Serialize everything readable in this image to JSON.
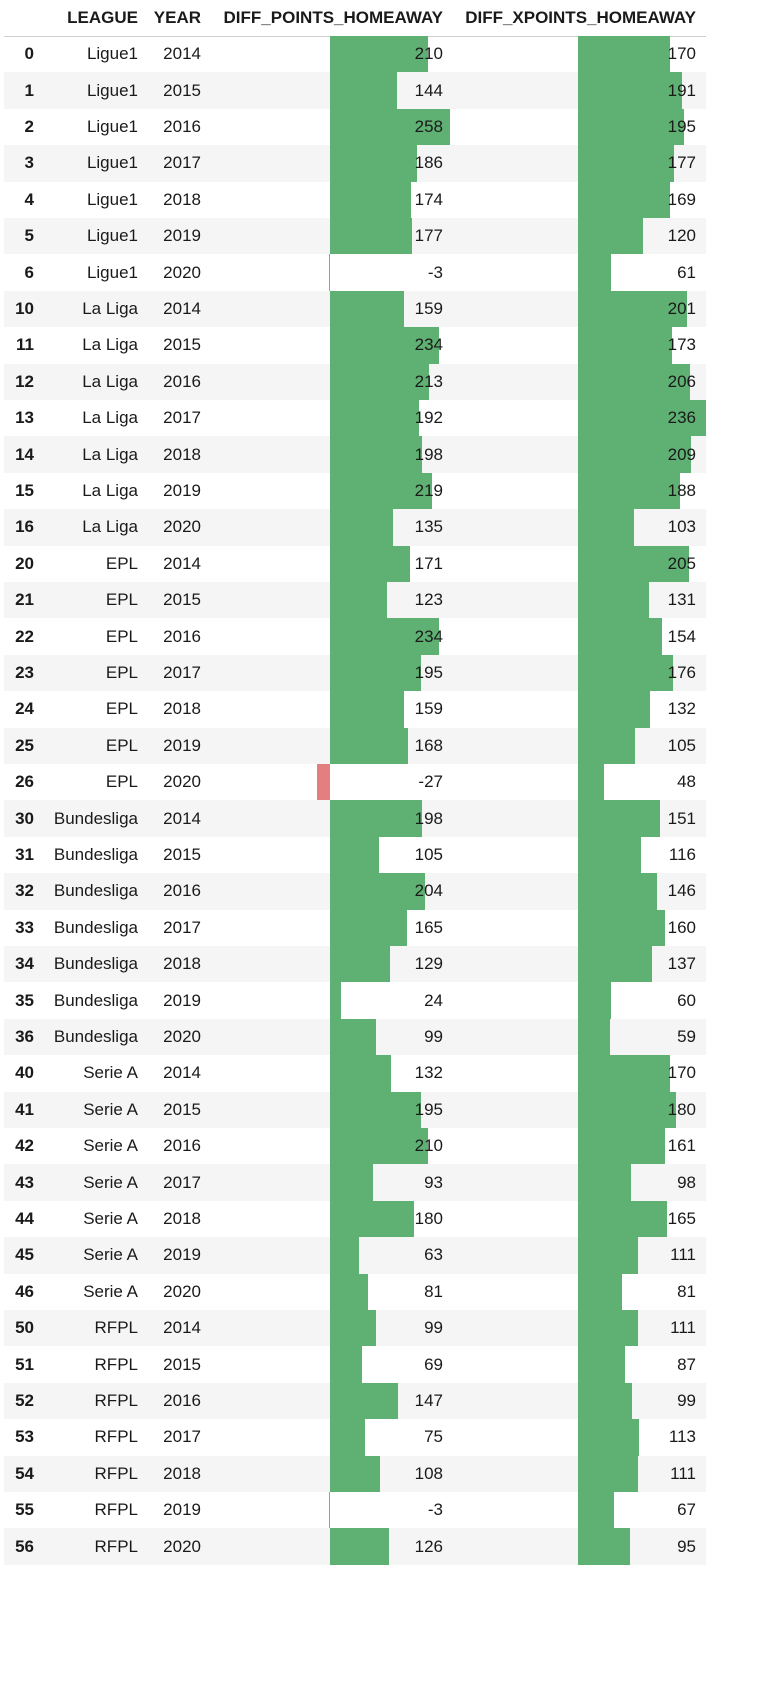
{
  "table": {
    "columns": {
      "index": "",
      "league": "LEAGUE",
      "year": "YEAR",
      "diff_points": "DIFF_POINTS_HOMEAWAY",
      "diff_xpoints": "DIFF_XPOINTS_HOMEAWAY"
    },
    "bar_colors": {
      "positive": "#5fb173",
      "negative": "#e3807f"
    },
    "diff_points_scale": {
      "min": -27,
      "max": 258
    },
    "diff_xpoints_scale": {
      "min": 0,
      "max": 236
    },
    "rows": [
      {
        "index": "0",
        "league": "Ligue1",
        "year": "2014",
        "diff_points": 210,
        "diff_xpoints": 170
      },
      {
        "index": "1",
        "league": "Ligue1",
        "year": "2015",
        "diff_points": 144,
        "diff_xpoints": 191
      },
      {
        "index": "2",
        "league": "Ligue1",
        "year": "2016",
        "diff_points": 258,
        "diff_xpoints": 195
      },
      {
        "index": "3",
        "league": "Ligue1",
        "year": "2017",
        "diff_points": 186,
        "diff_xpoints": 177
      },
      {
        "index": "4",
        "league": "Ligue1",
        "year": "2018",
        "diff_points": 174,
        "diff_xpoints": 169
      },
      {
        "index": "5",
        "league": "Ligue1",
        "year": "2019",
        "diff_points": 177,
        "diff_xpoints": 120
      },
      {
        "index": "6",
        "league": "Ligue1",
        "year": "2020",
        "diff_points": -3,
        "diff_xpoints": 61
      },
      {
        "index": "10",
        "league": "La Liga",
        "year": "2014",
        "diff_points": 159,
        "diff_xpoints": 201
      },
      {
        "index": "11",
        "league": "La Liga",
        "year": "2015",
        "diff_points": 234,
        "diff_xpoints": 173
      },
      {
        "index": "12",
        "league": "La Liga",
        "year": "2016",
        "diff_points": 213,
        "diff_xpoints": 206
      },
      {
        "index": "13",
        "league": "La Liga",
        "year": "2017",
        "diff_points": 192,
        "diff_xpoints": 236
      },
      {
        "index": "14",
        "league": "La Liga",
        "year": "2018",
        "diff_points": 198,
        "diff_xpoints": 209
      },
      {
        "index": "15",
        "league": "La Liga",
        "year": "2019",
        "diff_points": 219,
        "diff_xpoints": 188
      },
      {
        "index": "16",
        "league": "La Liga",
        "year": "2020",
        "diff_points": 135,
        "diff_xpoints": 103
      },
      {
        "index": "20",
        "league": "EPL",
        "year": "2014",
        "diff_points": 171,
        "diff_xpoints": 205
      },
      {
        "index": "21",
        "league": "EPL",
        "year": "2015",
        "diff_points": 123,
        "diff_xpoints": 131
      },
      {
        "index": "22",
        "league": "EPL",
        "year": "2016",
        "diff_points": 234,
        "diff_xpoints": 154
      },
      {
        "index": "23",
        "league": "EPL",
        "year": "2017",
        "diff_points": 195,
        "diff_xpoints": 176
      },
      {
        "index": "24",
        "league": "EPL",
        "year": "2018",
        "diff_points": 159,
        "diff_xpoints": 132
      },
      {
        "index": "25",
        "league": "EPL",
        "year": "2019",
        "diff_points": 168,
        "diff_xpoints": 105
      },
      {
        "index": "26",
        "league": "EPL",
        "year": "2020",
        "diff_points": -27,
        "diff_xpoints": 48
      },
      {
        "index": "30",
        "league": "Bundesliga",
        "year": "2014",
        "diff_points": 198,
        "diff_xpoints": 151
      },
      {
        "index": "31",
        "league": "Bundesliga",
        "year": "2015",
        "diff_points": 105,
        "diff_xpoints": 116
      },
      {
        "index": "32",
        "league": "Bundesliga",
        "year": "2016",
        "diff_points": 204,
        "diff_xpoints": 146
      },
      {
        "index": "33",
        "league": "Bundesliga",
        "year": "2017",
        "diff_points": 165,
        "diff_xpoints": 160
      },
      {
        "index": "34",
        "league": "Bundesliga",
        "year": "2018",
        "diff_points": 129,
        "diff_xpoints": 137
      },
      {
        "index": "35",
        "league": "Bundesliga",
        "year": "2019",
        "diff_points": 24,
        "diff_xpoints": 60
      },
      {
        "index": "36",
        "league": "Bundesliga",
        "year": "2020",
        "diff_points": 99,
        "diff_xpoints": 59
      },
      {
        "index": "40",
        "league": "Serie A",
        "year": "2014",
        "diff_points": 132,
        "diff_xpoints": 170
      },
      {
        "index": "41",
        "league": "Serie A",
        "year": "2015",
        "diff_points": 195,
        "diff_xpoints": 180
      },
      {
        "index": "42",
        "league": "Serie A",
        "year": "2016",
        "diff_points": 210,
        "diff_xpoints": 161
      },
      {
        "index": "43",
        "league": "Serie A",
        "year": "2017",
        "diff_points": 93,
        "diff_xpoints": 98
      },
      {
        "index": "44",
        "league": "Serie A",
        "year": "2018",
        "diff_points": 180,
        "diff_xpoints": 165
      },
      {
        "index": "45",
        "league": "Serie A",
        "year": "2019",
        "diff_points": 63,
        "diff_xpoints": 111
      },
      {
        "index": "46",
        "league": "Serie A",
        "year": "2020",
        "diff_points": 81,
        "diff_xpoints": 81
      },
      {
        "index": "50",
        "league": "RFPL",
        "year": "2014",
        "diff_points": 99,
        "diff_xpoints": 111
      },
      {
        "index": "51",
        "league": "RFPL",
        "year": "2015",
        "diff_points": 69,
        "diff_xpoints": 87
      },
      {
        "index": "52",
        "league": "RFPL",
        "year": "2016",
        "diff_points": 147,
        "diff_xpoints": 99
      },
      {
        "index": "53",
        "league": "RFPL",
        "year": "2017",
        "diff_points": 75,
        "diff_xpoints": 113
      },
      {
        "index": "54",
        "league": "RFPL",
        "year": "2018",
        "diff_points": 108,
        "diff_xpoints": 111
      },
      {
        "index": "55",
        "league": "RFPL",
        "year": "2019",
        "diff_points": -3,
        "diff_xpoints": 67
      },
      {
        "index": "56",
        "league": "RFPL",
        "year": "2020",
        "diff_points": 126,
        "diff_xpoints": 95
      }
    ]
  }
}
